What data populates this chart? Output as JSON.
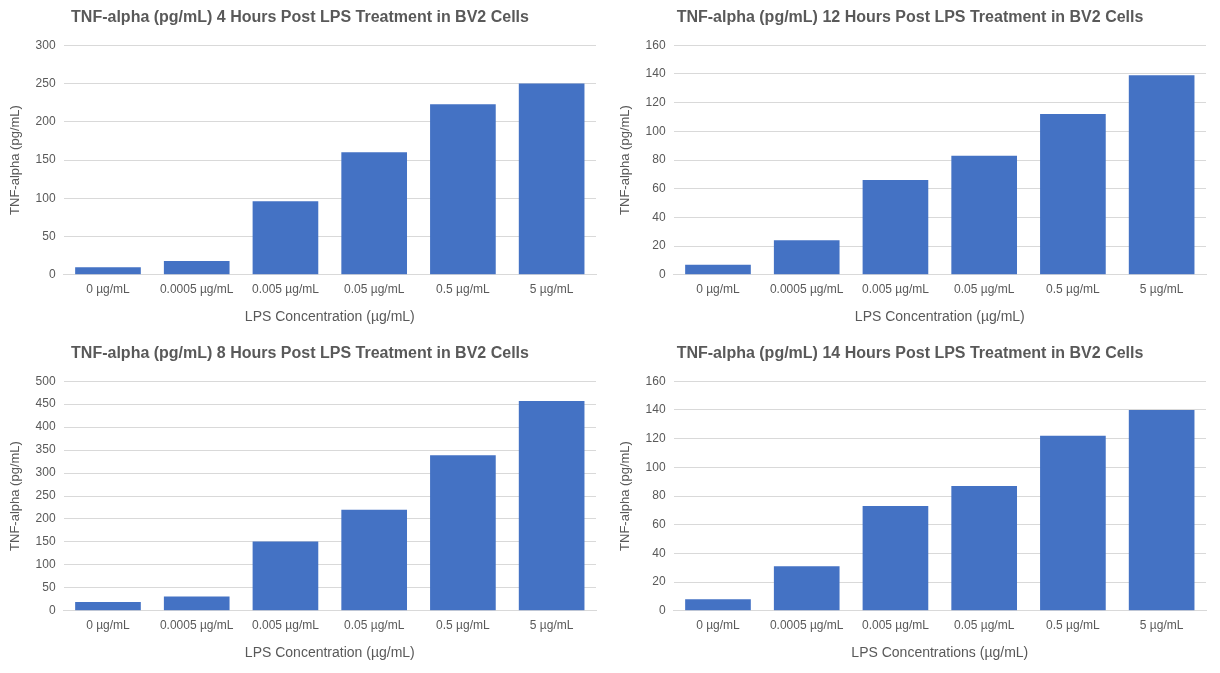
{
  "chart_data": [
    {
      "type": "bar",
      "title": "TNF-alpha (pg/mL) 4 Hours Post LPS Treatment in BV2 Cells",
      "xlabel": "LPS Concentration (µg/mL)",
      "ylabel": "TNF-alpha (pg/mL)",
      "categories": [
        "0 µg/mL",
        "0.0005 µg/mL",
        "0.005 µg/mL",
        "0.05 µg/mL",
        "0.5 µg/mL",
        "5 µg/mL"
      ],
      "values": [
        10,
        18,
        96,
        160,
        223,
        250
      ],
      "color": "#4472c4",
      "ylim": [
        0,
        300
      ],
      "yticks": [
        0,
        50,
        100,
        150,
        200,
        250,
        300
      ],
      "grid": "y",
      "legend": false
    },
    {
      "type": "bar",
      "title": "TNF-alpha (pg/mL) 12 Hours Post LPS Treatment in BV2 Cells",
      "xlabel": "LPS Concentration (µg/mL)",
      "ylabel": "TNF-alpha (pg/mL)",
      "categories": [
        "0 µg/mL",
        "0.0005 µg/mL",
        "0.005 µg/mL",
        "0.05 µg/mL",
        "0.5 µg/mL",
        "5 µg/mL"
      ],
      "values": [
        7,
        24,
        66,
        83,
        112,
        139
      ],
      "color": "#4472c4",
      "ylim": [
        0,
        160
      ],
      "yticks": [
        0,
        20,
        40,
        60,
        80,
        100,
        120,
        140,
        160
      ],
      "grid": "y",
      "legend": false
    },
    {
      "type": "bar",
      "title": "TNF-alpha (pg/mL) 8 Hours Post LPS Treatment in BV2 Cells",
      "xlabel": "LPS Concentration (µg/mL)",
      "ylabel": "TNF-alpha (pg/mL)",
      "categories": [
        "0 µg/mL",
        "0.0005 µg/mL",
        "0.005 µg/mL",
        "0.05 µg/mL",
        "0.5 µg/mL",
        "5 µg/mL"
      ],
      "values": [
        19,
        31,
        151,
        220,
        339,
        457
      ],
      "color": "#4472c4",
      "ylim": [
        0,
        500
      ],
      "yticks": [
        0,
        50,
        100,
        150,
        200,
        250,
        300,
        350,
        400,
        450,
        500
      ],
      "grid": "y",
      "legend": false
    },
    {
      "type": "bar",
      "title": "TNF-alpha (pg/mL) 14 Hours Post LPS Treatment in BV2 Cells",
      "xlabel": "LPS Concentrations (µg/mL)",
      "ylabel": "TNF-alpha (pg/mL)",
      "categories": [
        "0 µg/mL",
        "0.0005 µg/mL",
        "0.005 µg/mL",
        "0.05 µg/mL",
        "0.5 µg/mL",
        "5 µg/mL"
      ],
      "values": [
        8,
        31,
        73,
        87,
        122,
        140
      ],
      "color": "#4472c4",
      "ylim": [
        0,
        160
      ],
      "yticks": [
        0,
        20,
        40,
        60,
        80,
        100,
        120,
        140,
        160
      ],
      "grid": "y",
      "legend": false
    }
  ]
}
